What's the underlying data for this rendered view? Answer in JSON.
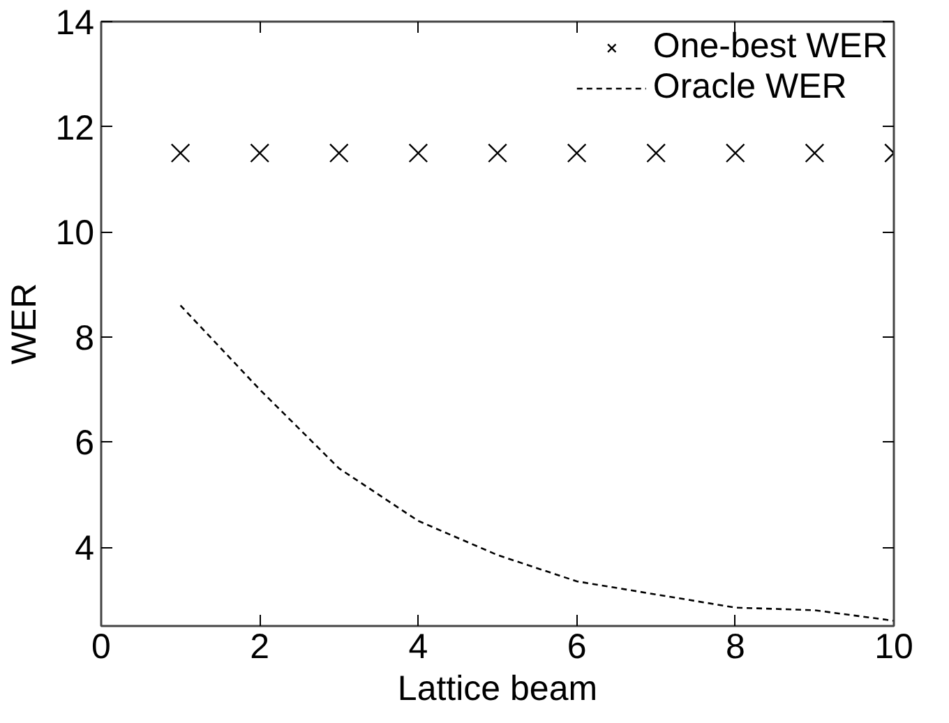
{
  "chart_data": {
    "type": "line",
    "xlabel": "Lattice beam",
    "ylabel": "WER",
    "x": [
      1,
      2,
      3,
      4,
      5,
      6,
      7,
      8,
      9,
      10
    ],
    "series": [
      {
        "name": "One-best WER",
        "type": "scatter",
        "marker": "cross",
        "color": "#000000",
        "values": [
          11.5,
          11.5,
          11.5,
          11.5,
          11.5,
          11.5,
          11.5,
          11.5,
          11.5,
          11.5
        ]
      },
      {
        "name": "Oracle WER",
        "line_style": "dashed",
        "color": "#000000",
        "values": [
          8.6,
          7.0,
          5.5,
          4.5,
          3.85,
          3.35,
          3.1,
          2.85,
          2.8,
          2.6
        ]
      }
    ],
    "xlim": [
      0,
      10
    ],
    "ylim": [
      2.5,
      14
    ],
    "xticks": [
      0,
      2,
      4,
      6,
      8,
      10
    ],
    "yticks": [
      4,
      6,
      8,
      10,
      12,
      14
    ],
    "grid": false,
    "legend": "top right"
  }
}
